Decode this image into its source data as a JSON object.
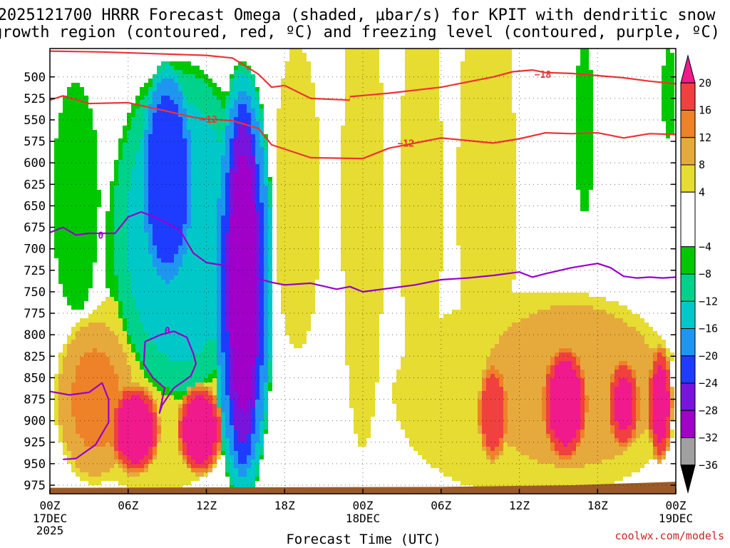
{
  "chart_data": {
    "type": "heatmap",
    "title_line1": "2025121700 HRRR Forecast Omega (shaded, μbar/s) for KPIT with dendritic snow",
    "title_line2": "growth region (contoured, red, ºC) and freezing level (contoured, purple, ºC)",
    "xlabel": "Forecast Time (UTC)",
    "credit": "coolwx.com/models",
    "x_hours_range": [
      0,
      48
    ],
    "ylim_hpa": [
      985,
      467
    ],
    "x_ticks": [
      {
        "hour": 0,
        "label": "00Z",
        "sub": "17DEC",
        "sub2": "2025"
      },
      {
        "hour": 6,
        "label": "06Z",
        "sub": "",
        "sub2": ""
      },
      {
        "hour": 12,
        "label": "12Z",
        "sub": "",
        "sub2": ""
      },
      {
        "hour": 18,
        "label": "18Z",
        "sub": "",
        "sub2": ""
      },
      {
        "hour": 24,
        "label": "00Z",
        "sub": "18DEC",
        "sub2": ""
      },
      {
        "hour": 30,
        "label": "06Z",
        "sub": "",
        "sub2": ""
      },
      {
        "hour": 36,
        "label": "12Z",
        "sub": "",
        "sub2": ""
      },
      {
        "hour": 42,
        "label": "18Z",
        "sub": "",
        "sub2": ""
      },
      {
        "hour": 48,
        "label": "00Z",
        "sub": "19DEC",
        "sub2": ""
      }
    ],
    "y_ticks": [
      500,
      525,
      550,
      575,
      600,
      625,
      650,
      675,
      700,
      725,
      750,
      775,
      800,
      825,
      850,
      875,
      900,
      925,
      950,
      975
    ],
    "colorbar": {
      "labels": [
        "20",
        "16",
        "12",
        "8",
        "4",
        "−4",
        "−8",
        "−12",
        "−16",
        "−20",
        "−24",
        "−28",
        "−32",
        "−36"
      ],
      "bands": [
        {
          "min": 20,
          "max": 24,
          "color": "#f01a8c"
        },
        {
          "min": 16,
          "max": 20,
          "color": "#f04040"
        },
        {
          "min": 12,
          "max": 16,
          "color": "#ee8228"
        },
        {
          "min": 8,
          "max": 12,
          "color": "#e6aa3c"
        },
        {
          "min": 4,
          "max": 8,
          "color": "#e6dc32"
        },
        {
          "min": -4,
          "max": 4,
          "color": "#ffffff"
        },
        {
          "min": -8,
          "max": -4,
          "color": "#00c800"
        },
        {
          "min": -12,
          "max": -8,
          "color": "#00d28c"
        },
        {
          "min": -16,
          "max": -12,
          "color": "#00c8c8"
        },
        {
          "min": -20,
          "max": -16,
          "color": "#1e96f0"
        },
        {
          "min": -24,
          "max": -20,
          "color": "#1e3cff"
        },
        {
          "min": -28,
          "max": -24,
          "color": "#7814dc"
        },
        {
          "min": -32,
          "max": -28,
          "color": "#a000c8"
        },
        {
          "min": -36,
          "max": -32,
          "color": "#a0a0a0"
        },
        {
          "min": -40,
          "max": -36,
          "color": "#000000"
        }
      ]
    },
    "omega_blobs": [
      {
        "name": "sinking-band-left-orange",
        "hour": 3.5,
        "p_center": 875,
        "p_half": 100,
        "h_half": 3.2,
        "value": 12
      },
      {
        "name": "sinking-core-06z",
        "hour": 6.5,
        "p_center": 910,
        "p_half": 55,
        "h_half": 2.0,
        "value": 22
      },
      {
        "name": "sinking-core-12z",
        "hour": 11.5,
        "p_center": 910,
        "p_half": 55,
        "h_half": 1.8,
        "value": 22
      },
      {
        "name": "sinking-band-17dec-yellow",
        "hour": 8.0,
        "p_center": 860,
        "p_half": 140,
        "h_half": 7.5,
        "value": 6
      },
      {
        "name": "rising-green-left",
        "hour": 2.0,
        "p_center": 640,
        "p_half": 150,
        "h_half": 2.0,
        "value": -6
      },
      {
        "name": "rising-main-green",
        "hour": 10.5,
        "p_center": 700,
        "p_half": 230,
        "h_half": 7.0,
        "value": -6
      },
      {
        "name": "rising-main-cyan",
        "hour": 10.0,
        "p_center": 680,
        "p_half": 200,
        "h_half": 5.5,
        "value": -14
      },
      {
        "name": "rising-main-blue",
        "hour": 9.0,
        "p_center": 620,
        "p_half": 140,
        "h_half": 2.2,
        "value": -22
      },
      {
        "name": "rising-core-purple",
        "hour": 14.8,
        "p_center": 740,
        "p_half": 240,
        "h_half": 1.6,
        "value": -29
      },
      {
        "name": "rising-core-blue",
        "hour": 14.8,
        "p_center": 740,
        "p_half": 260,
        "h_half": 2.4,
        "value": -22
      },
      {
        "name": "sinking-yellow-18z-col",
        "hour": 19.0,
        "p_center": 640,
        "p_half": 200,
        "h_half": 2.0,
        "value": 6
      },
      {
        "name": "sinking-yellow-00z-col",
        "hour": 24.0,
        "p_center": 640,
        "p_half": 330,
        "h_half": 1.8,
        "value": 6
      },
      {
        "name": "sinking-yellow-06z-col",
        "hour": 28.5,
        "p_center": 640,
        "p_half": 300,
        "h_half": 1.8,
        "value": 6
      },
      {
        "name": "sinking-yellow-12z-col",
        "hour": 33.5,
        "p_center": 640,
        "p_half": 320,
        "h_half": 2.5,
        "value": 6
      },
      {
        "name": "sinking-yellow-lower-19dec",
        "hour": 37.5,
        "p_center": 870,
        "p_half": 130,
        "h_half": 12.0,
        "value": 7
      },
      {
        "name": "sinking-orange-19dec",
        "hour": 40.0,
        "p_center": 860,
        "p_half": 110,
        "h_half": 8.0,
        "value": 11
      },
      {
        "name": "sinking-core-15z-19dec",
        "hour": 39.5,
        "p_center": 880,
        "p_half": 70,
        "h_half": 1.8,
        "value": 22
      },
      {
        "name": "sinking-core-34z",
        "hour": 34.0,
        "p_center": 890,
        "p_half": 60,
        "h_half": 1.2,
        "value": 18
      },
      {
        "name": "sinking-core-21z-19dec",
        "hour": 44.0,
        "p_center": 880,
        "p_half": 55,
        "h_half": 1.3,
        "value": 20
      },
      {
        "name": "sinking-core-23z-19dec",
        "hour": 46.8,
        "p_center": 880,
        "p_half": 70,
        "h_half": 1.0,
        "value": 21
      },
      {
        "name": "rising-green-40z",
        "hour": 41.0,
        "p_center": 560,
        "p_half": 110,
        "h_half": 0.8,
        "value": -6
      },
      {
        "name": "rising-green-47z",
        "hour": 47.5,
        "p_center": 520,
        "p_half": 60,
        "h_half": 0.6,
        "value": -6
      }
    ],
    "dgz_isotherms": [
      {
        "name": "dgz-minus-18-contour",
        "label": "−18",
        "label_hour": 37.8,
        "label_p": 497,
        "hours": [
          23,
          26,
          30,
          34,
          35.5,
          37,
          38,
          40,
          44,
          46,
          48
        ],
        "p": [
          523,
          519,
          512,
          500,
          494,
          492,
          495,
          496,
          501,
          505,
          508
        ]
      },
      {
        "name": "dgz-minus-12-contour-a",
        "label": "−12",
        "label_hour": 12.2,
        "label_p": 549,
        "hours": [
          0,
          1,
          3,
          6,
          9,
          11,
          12,
          14,
          16,
          17,
          20,
          24
        ],
        "p": [
          527,
          522,
          531,
          530,
          540,
          547,
          549,
          551,
          560,
          579,
          594,
          595
        ]
      },
      {
        "name": "dgz-minus-12-contour-b",
        "label": "−12",
        "label_hour": 27.3,
        "label_p": 577,
        "hours": [
          24,
          26,
          28,
          30,
          34,
          36,
          38,
          40,
          42,
          44,
          46,
          48
        ],
        "p": [
          595,
          583,
          577,
          571,
          577,
          572,
          565,
          566,
          565,
          571,
          566,
          567
        ]
      },
      {
        "name": "dgz-upper-contour",
        "label": "",
        "label_hour": 0,
        "label_p": 0,
        "hours": [
          0,
          4,
          8,
          12,
          14,
          16,
          17,
          18,
          20,
          23
        ],
        "p": [
          470,
          471,
          473,
          475,
          478,
          497,
          512,
          510,
          525,
          527
        ]
      }
    ],
    "freezing_level": [
      {
        "name": "freezing-level-contour-main",
        "label": "0",
        "label_hour": 3.9,
        "label_p": 684,
        "hours": [
          0,
          1,
          2,
          3,
          5,
          6,
          7,
          8,
          9,
          10,
          11,
          12,
          14,
          15.5,
          17,
          18,
          20,
          22,
          23,
          24,
          26,
          28,
          30,
          32,
          34,
          36,
          37,
          38,
          40,
          42,
          43,
          44,
          45,
          46,
          47,
          48
        ],
        "p": [
          681,
          675,
          684,
          682,
          682,
          663,
          657,
          663,
          670,
          679,
          705,
          716,
          721,
          733,
          739,
          742,
          740,
          747,
          744,
          750,
          746,
          742,
          736,
          734,
          731,
          727,
          733,
          729,
          722,
          717,
          722,
          732,
          734,
          733,
          734,
          733
        ]
      },
      {
        "name": "freezing-level-contour-low",
        "label": "0",
        "label_hour": 9.0,
        "label_p": 795,
        "hours": [
          0,
          1.5,
          3,
          4,
          4.5,
          4.5,
          3.5,
          2,
          1
        ],
        "p": [
          866,
          870,
          867,
          856,
          875,
          902,
          928,
          944,
          945
        ]
      },
      {
        "name": "freezing-level-contour-loop",
        "label": "",
        "label_hour": 0,
        "label_p": 0,
        "hours": [
          8.5,
          9.5,
          10.5,
          11,
          11.2,
          10.8,
          9.5,
          8.6,
          8.4,
          8.8,
          7.9,
          7.2,
          7.3,
          8.5
        ],
        "p": [
          800,
          796,
          803,
          822,
          834,
          848,
          862,
          882,
          891,
          862,
          850,
          834,
          808,
          800
        ]
      }
    ],
    "terrain_color": "#9b5a28",
    "freezing_color": "#9900cc",
    "dgz_color": "#ee3333"
  }
}
